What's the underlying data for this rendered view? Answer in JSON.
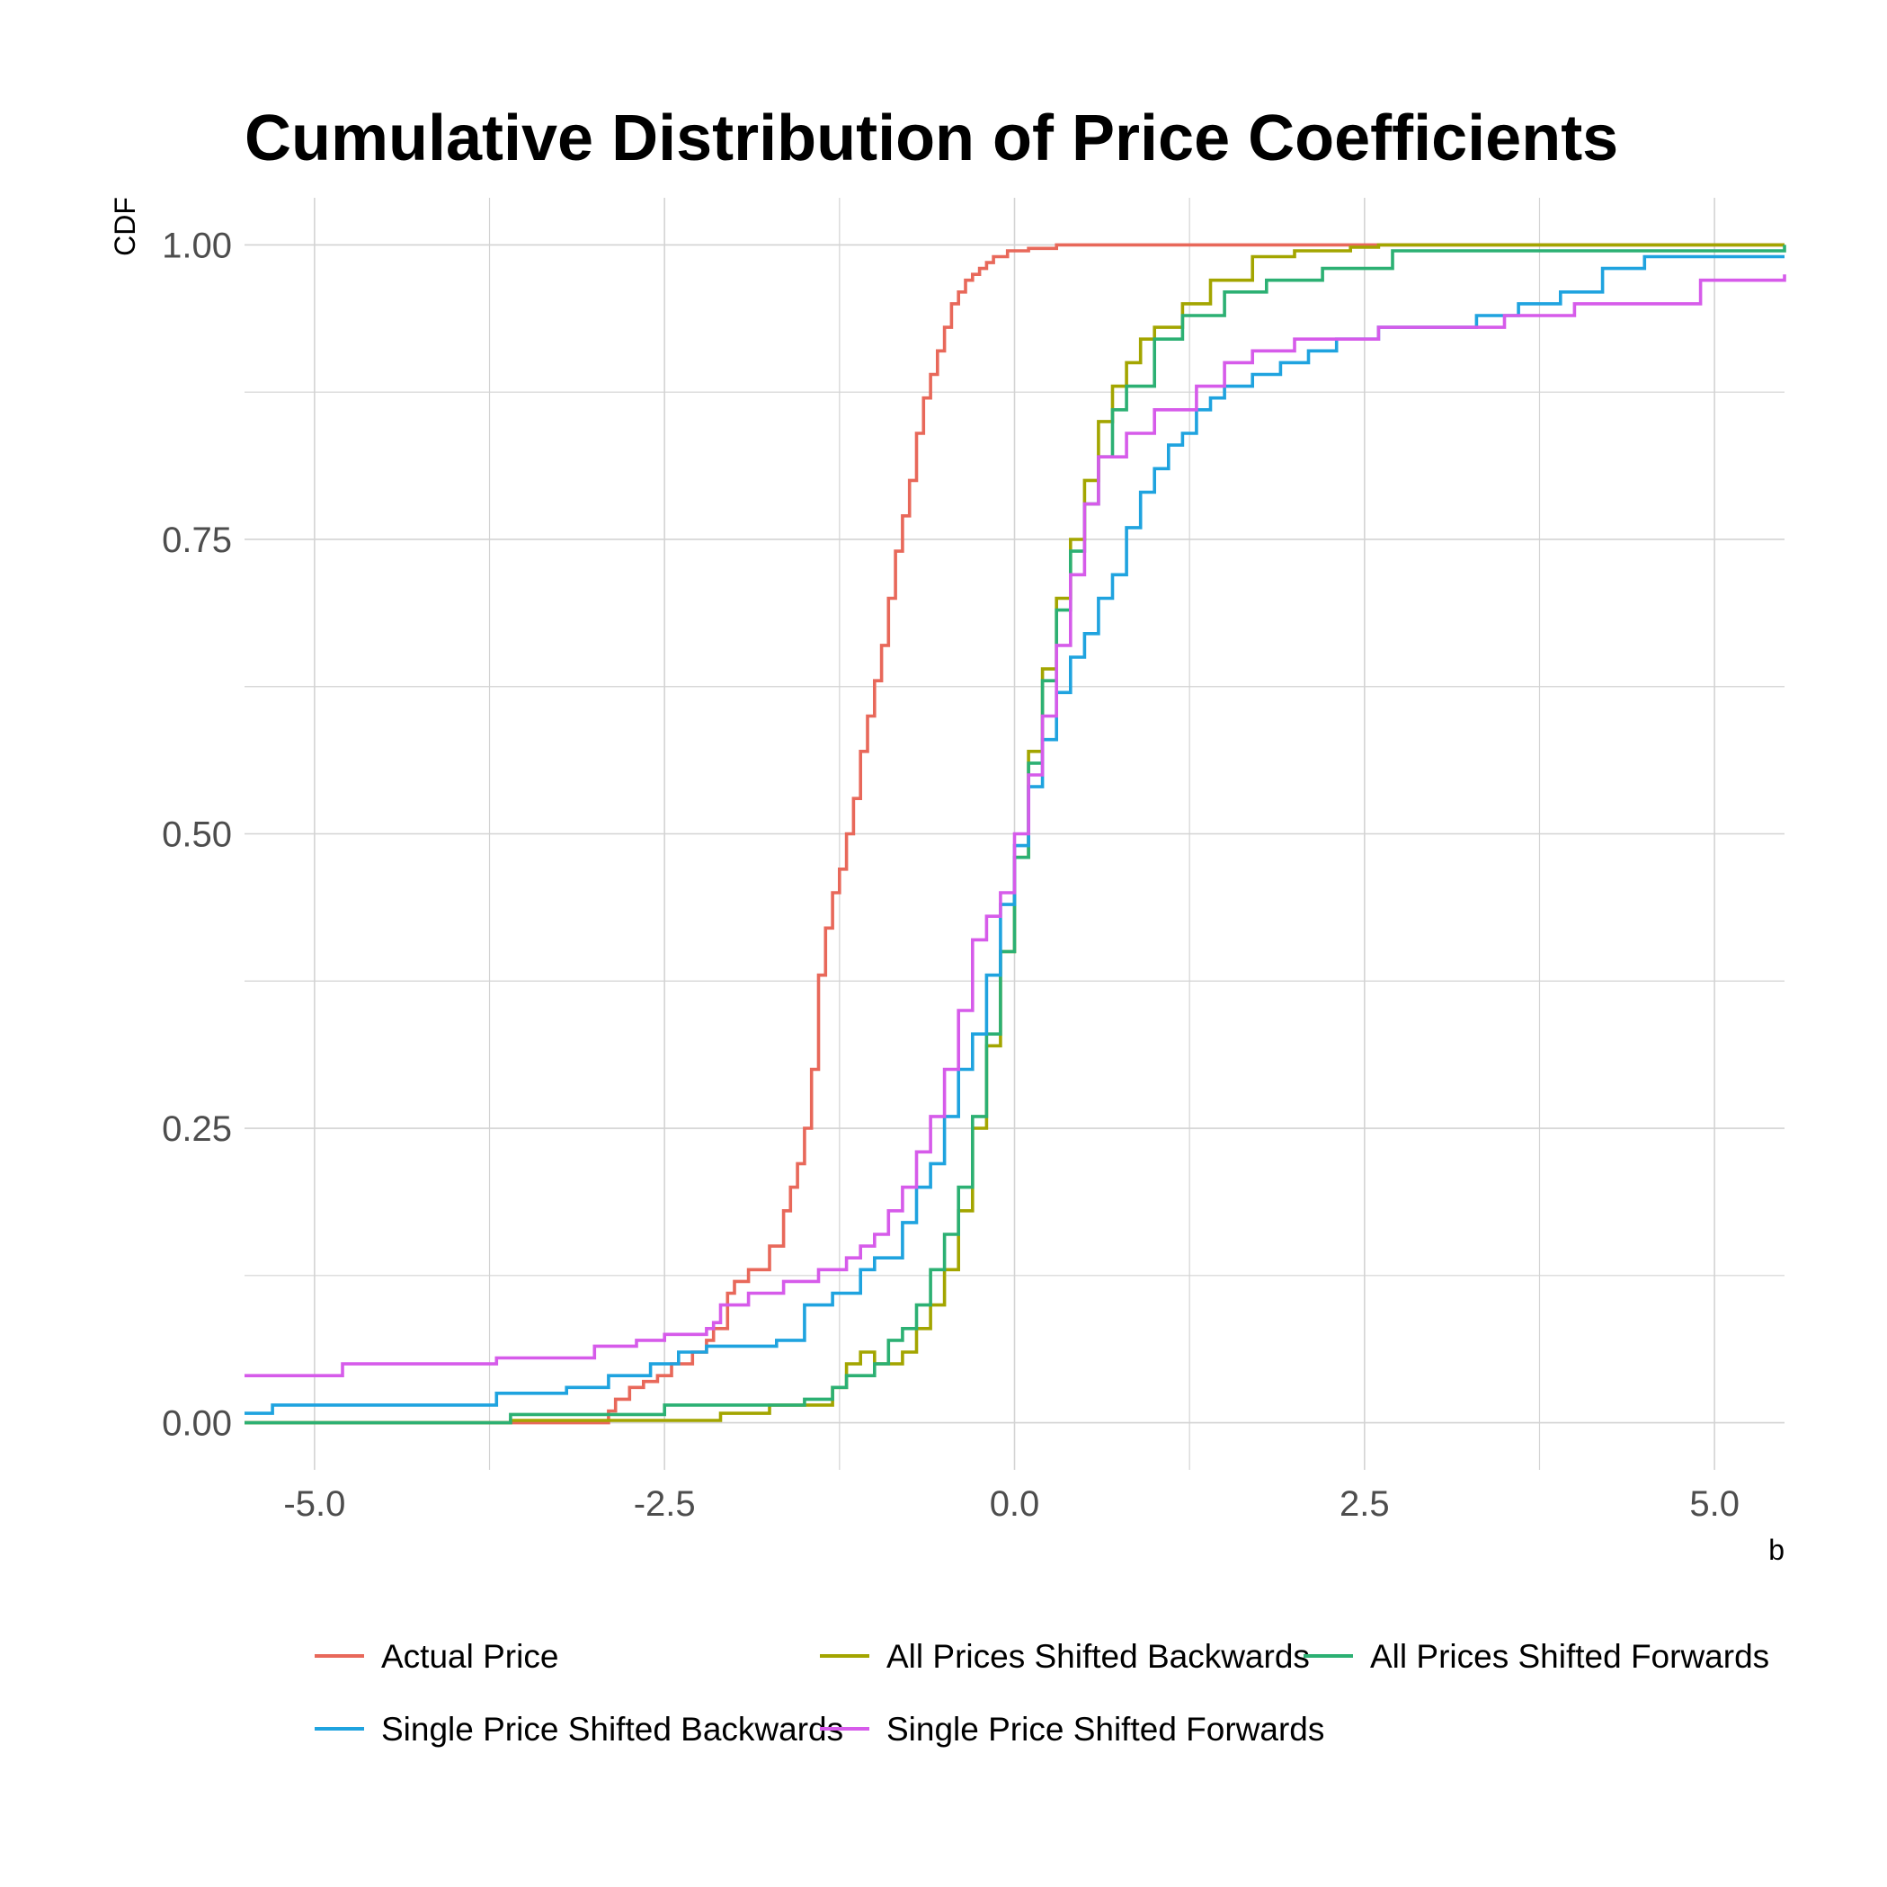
{
  "chart_data": {
    "type": "line",
    "title": "Cumulative Distribution of Price Coefficients",
    "xlabel": "b",
    "ylabel": "CDF",
    "xlim": [
      -5.5,
      5.5
    ],
    "ylim": [
      -0.04,
      1.04
    ],
    "x_ticks": [
      "-5.0",
      "-2.5",
      "0.0",
      "2.5",
      "5.0"
    ],
    "x_tick_values": [
      -5.0,
      -2.5,
      0.0,
      2.5,
      5.0
    ],
    "y_ticks": [
      "0.00",
      "0.25",
      "0.50",
      "0.75",
      "1.00"
    ],
    "y_tick_values": [
      0.0,
      0.25,
      0.5,
      0.75,
      1.0
    ],
    "grid": true,
    "legend_position": "bottom",
    "series": [
      {
        "name": "Actual Price",
        "color": "#E8685A",
        "x": [
          -5.5,
          -2.9,
          -2.85,
          -2.75,
          -2.65,
          -2.55,
          -2.45,
          -2.3,
          -2.2,
          -2.15,
          -2.05,
          -2.0,
          -1.9,
          -1.75,
          -1.65,
          -1.6,
          -1.55,
          -1.5,
          -1.45,
          -1.4,
          -1.35,
          -1.3,
          -1.25,
          -1.2,
          -1.15,
          -1.1,
          -1.05,
          -1.0,
          -0.95,
          -0.9,
          -0.85,
          -0.8,
          -0.75,
          -0.7,
          -0.65,
          -0.6,
          -0.55,
          -0.5,
          -0.45,
          -0.4,
          -0.35,
          -0.3,
          -0.25,
          -0.2,
          -0.15,
          -0.1,
          -0.05,
          0.1,
          0.3,
          5.5
        ],
        "y": [
          0.0,
          0.01,
          0.02,
          0.03,
          0.035,
          0.04,
          0.05,
          0.06,
          0.07,
          0.08,
          0.11,
          0.12,
          0.13,
          0.15,
          0.18,
          0.2,
          0.22,
          0.25,
          0.3,
          0.38,
          0.42,
          0.45,
          0.47,
          0.5,
          0.53,
          0.57,
          0.6,
          0.63,
          0.66,
          0.7,
          0.74,
          0.77,
          0.8,
          0.84,
          0.87,
          0.89,
          0.91,
          0.93,
          0.95,
          0.96,
          0.97,
          0.975,
          0.98,
          0.985,
          0.99,
          0.99,
          0.995,
          0.997,
          1.0,
          1.0
        ]
      },
      {
        "name": "All Prices Shifted Backwards",
        "color": "#A3A500",
        "x": [
          -5.5,
          -3.6,
          -2.1,
          -1.75,
          -1.3,
          -1.2,
          -1.1,
          -1.0,
          -0.8,
          -0.7,
          -0.6,
          -0.5,
          -0.4,
          -0.3,
          -0.2,
          -0.1,
          0.0,
          0.1,
          0.2,
          0.3,
          0.4,
          0.5,
          0.6,
          0.7,
          0.8,
          0.9,
          1.0,
          1.2,
          1.4,
          1.7,
          2.0,
          2.4,
          2.6,
          5.5
        ],
        "y": [
          0.0,
          0.002,
          0.008,
          0.015,
          0.03,
          0.05,
          0.06,
          0.05,
          0.06,
          0.08,
          0.1,
          0.13,
          0.18,
          0.25,
          0.32,
          0.4,
          0.48,
          0.57,
          0.64,
          0.7,
          0.75,
          0.8,
          0.85,
          0.88,
          0.9,
          0.92,
          0.93,
          0.95,
          0.97,
          0.99,
          0.995,
          0.998,
          1.0,
          1.0
        ]
      },
      {
        "name": "All Prices Shifted Forwards",
        "color": "#2CB073",
        "x": [
          -5.5,
          -3.6,
          -2.5,
          -1.5,
          -1.3,
          -1.2,
          -1.0,
          -0.9,
          -0.8,
          -0.7,
          -0.6,
          -0.5,
          -0.4,
          -0.3,
          -0.2,
          -0.1,
          0.0,
          0.1,
          0.2,
          0.3,
          0.4,
          0.5,
          0.6,
          0.7,
          0.8,
          1.0,
          1.2,
          1.5,
          1.8,
          2.2,
          2.7,
          5.5
        ],
        "y": [
          0.0,
          0.007,
          0.015,
          0.02,
          0.03,
          0.04,
          0.05,
          0.07,
          0.08,
          0.1,
          0.13,
          0.16,
          0.2,
          0.26,
          0.33,
          0.4,
          0.48,
          0.56,
          0.63,
          0.69,
          0.74,
          0.78,
          0.82,
          0.86,
          0.88,
          0.92,
          0.94,
          0.96,
          0.97,
          0.98,
          0.995,
          1.0
        ]
      },
      {
        "name": "Single Price Shifted Backwards",
        "color": "#1FA3DF",
        "x": [
          -5.5,
          -5.3,
          -3.7,
          -3.2,
          -2.9,
          -2.6,
          -2.4,
          -2.2,
          -1.7,
          -1.5,
          -1.3,
          -1.1,
          -1.0,
          -0.8,
          -0.7,
          -0.6,
          -0.5,
          -0.4,
          -0.3,
          -0.2,
          -0.1,
          0.0,
          0.1,
          0.2,
          0.3,
          0.4,
          0.5,
          0.6,
          0.7,
          0.8,
          0.9,
          1.0,
          1.1,
          1.2,
          1.3,
          1.4,
          1.5,
          1.7,
          1.9,
          2.1,
          2.3,
          2.6,
          3.3,
          3.6,
          3.9,
          4.2,
          4.5,
          5.5
        ],
        "y": [
          0.008,
          0.015,
          0.025,
          0.03,
          0.04,
          0.05,
          0.06,
          0.065,
          0.07,
          0.1,
          0.11,
          0.13,
          0.14,
          0.17,
          0.2,
          0.22,
          0.26,
          0.3,
          0.33,
          0.38,
          0.44,
          0.49,
          0.54,
          0.58,
          0.62,
          0.65,
          0.67,
          0.7,
          0.72,
          0.76,
          0.79,
          0.81,
          0.83,
          0.84,
          0.86,
          0.87,
          0.88,
          0.89,
          0.9,
          0.91,
          0.92,
          0.93,
          0.94,
          0.95,
          0.96,
          0.98,
          0.99,
          0.99
        ]
      },
      {
        "name": "Single Price Shifted Forwards",
        "color": "#D65BEA",
        "x": [
          -5.5,
          -4.8,
          -3.7,
          -3.0,
          -2.7,
          -2.5,
          -2.2,
          -2.15,
          -2.1,
          -1.9,
          -1.65,
          -1.4,
          -1.2,
          -1.1,
          -1.0,
          -0.9,
          -0.8,
          -0.7,
          -0.6,
          -0.5,
          -0.4,
          -0.3,
          -0.2,
          -0.1,
          0.0,
          0.1,
          0.2,
          0.3,
          0.4,
          0.5,
          0.6,
          0.8,
          1.0,
          1.3,
          1.5,
          1.7,
          2.0,
          2.6,
          3.5,
          4.0,
          4.9,
          5.5
        ],
        "y": [
          0.04,
          0.05,
          0.055,
          0.065,
          0.07,
          0.075,
          0.08,
          0.085,
          0.1,
          0.11,
          0.12,
          0.13,
          0.14,
          0.15,
          0.16,
          0.18,
          0.2,
          0.23,
          0.26,
          0.3,
          0.35,
          0.41,
          0.43,
          0.45,
          0.5,
          0.55,
          0.6,
          0.66,
          0.72,
          0.78,
          0.82,
          0.84,
          0.86,
          0.88,
          0.9,
          0.91,
          0.92,
          0.93,
          0.94,
          0.95,
          0.97,
          0.975
        ]
      }
    ]
  }
}
